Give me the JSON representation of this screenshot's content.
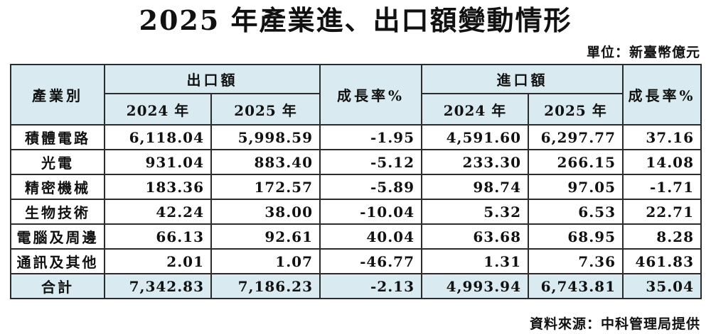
{
  "page": {
    "title": "2025 年產業進、出口額變動情形",
    "unit_note": "單位：新臺幣億元",
    "source_note": "資料來源：中科管理局提供"
  },
  "colors": {
    "header_bg": "#d9ebf1",
    "border": "#2b2b2b"
  },
  "table": {
    "headers": {
      "industry": "產業別",
      "export_group": "出口額",
      "import_group": "進口額",
      "export_growth": "成長率%",
      "import_growth": "成長率%",
      "export_2024": "2024 年",
      "export_2025": "2025 年",
      "import_2024": "2024 年",
      "import_2025": "2025 年"
    },
    "rows": [
      {
        "industry": "積體電路",
        "export_2024": "6,118.04",
        "export_2025": "5,998.59",
        "export_growth": "-1.95",
        "import_2024": "4,591.60",
        "import_2025": "6,297.77",
        "import_growth": "37.16"
      },
      {
        "industry": "光電",
        "export_2024": "931.04",
        "export_2025": "883.40",
        "export_growth": "-5.12",
        "import_2024": "233.30",
        "import_2025": "266.15",
        "import_growth": "14.08"
      },
      {
        "industry": "精密機械",
        "export_2024": "183.36",
        "export_2025": "172.57",
        "export_growth": "-5.89",
        "import_2024": "98.74",
        "import_2025": "97.05",
        "import_growth": "-1.71"
      },
      {
        "industry": "生物技術",
        "export_2024": "42.24",
        "export_2025": "38.00",
        "export_growth": "-10.04",
        "import_2024": "5.32",
        "import_2025": "6.53",
        "import_growth": "22.71"
      },
      {
        "industry": "電腦及周邊",
        "export_2024": "66.13",
        "export_2025": "92.61",
        "export_growth": "40.04",
        "import_2024": "63.68",
        "import_2025": "68.95",
        "import_growth": "8.28"
      },
      {
        "industry": "通訊及其他",
        "export_2024": "2.01",
        "export_2025": "1.07",
        "export_growth": "-46.77",
        "import_2024": "1.31",
        "import_2025": "7.36",
        "import_growth": "461.83"
      }
    ],
    "total_row": {
      "industry": "合計",
      "export_2024": "7,342.83",
      "export_2025": "7,186.23",
      "export_growth": "-2.13",
      "import_2024": "4,993.94",
      "import_2025": "6,743.81",
      "import_growth": "35.04"
    }
  }
}
